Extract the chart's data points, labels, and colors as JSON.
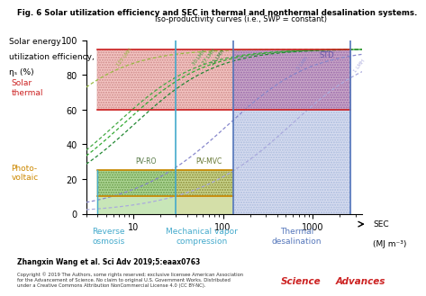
{
  "title": "Fig. 6 Solar utilization efficiency and SEC in thermal and nonthermal desalination systems.",
  "ylabel_line1": "Solar energy",
  "ylabel_line2": "utilization efficiency,",
  "ylabel_line3": "ηₛ (%)",
  "xlim": [
    3,
    3500
  ],
  "ylim": [
    0,
    100
  ],
  "yticks": [
    0,
    20,
    40,
    60,
    80,
    100
  ],
  "xticks": [
    10,
    100,
    1000
  ],
  "solar_thermal_ymin": 60,
  "solar_thermal_ymax": 95,
  "pv_ymin": 10,
  "pv_ymax": 25,
  "ro_xmin": 4,
  "ro_xmax": 30,
  "mvc_xmin": 30,
  "mvc_xmax": 130,
  "thermal_xmin": 130,
  "thermal_xmax": 2600,
  "col_pink": "#f5c8c5",
  "col_red_border": "#cc2222",
  "col_yellow": "#fde9a8",
  "col_orange_border": "#cc8800",
  "col_green": "#c8e6b8",
  "col_green2": "#d4dfa8",
  "col_blue": "#d8ddf0",
  "col_purple": "#caaac8",
  "col_blue_border": "#5577bb",
  "col_teal": "#44aacc",
  "citation": "Zhangxin Wang et al. Sci Adv 2019;5:eaax0763",
  "copyright": "Copyright © 2019 The Authors, some rights reserved; exclusive licensee American Association\nfor the Advancement of Science. No claim to original U.S. Government Works. Distributed\nunder a Creative Commons Attribution NonCommercial License 4.0 (CC BY-NC)."
}
